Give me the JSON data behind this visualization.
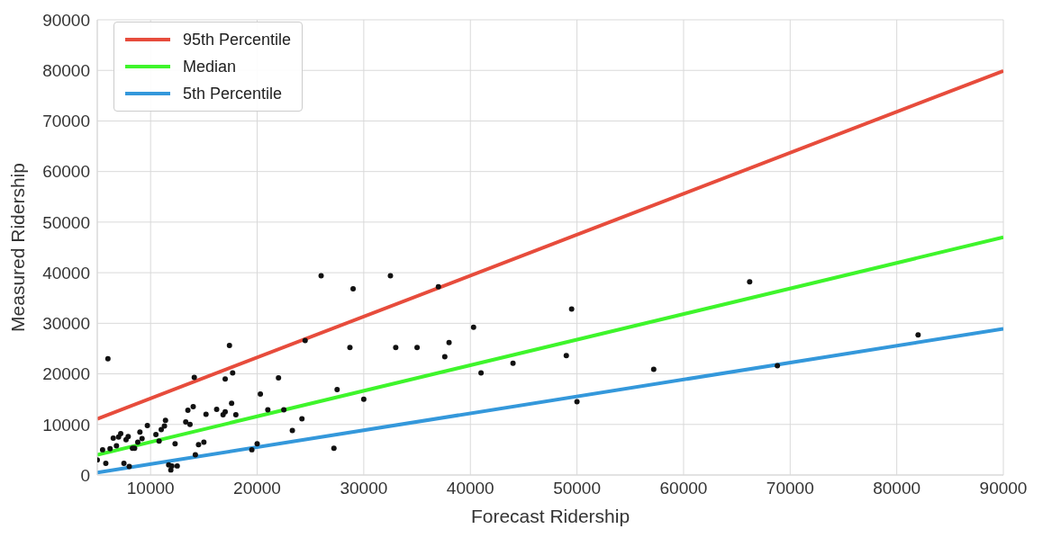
{
  "chart_data": {
    "type": "scatter",
    "xlabel": "Forecast Ridership",
    "ylabel": "Measured Ridership",
    "xlim": [
      5000,
      90000
    ],
    "ylim": [
      0,
      90000
    ],
    "xticks": [
      10000,
      20000,
      30000,
      40000,
      50000,
      60000,
      70000,
      80000,
      90000
    ],
    "yticks": [
      0,
      10000,
      20000,
      30000,
      40000,
      50000,
      60000,
      70000,
      80000,
      90000
    ],
    "grid": true,
    "legend": "top left",
    "series": [
      {
        "name": "95th Percentile",
        "type": "line",
        "color": "#e74c3c",
        "x": [
          5000,
          90000
        ],
        "values": [
          11100,
          79900
        ]
      },
      {
        "name": "Median",
        "type": "line",
        "color": "#3ef52b",
        "x": [
          5000,
          90000
        ],
        "values": [
          4000,
          47000
        ]
      },
      {
        "name": "5th Percentile",
        "type": "line",
        "color": "#3498db",
        "x": [
          5000,
          90000
        ],
        "values": [
          500,
          28900
        ]
      },
      {
        "color": "#111111",
        "marker": "circle",
        "x": [
          5000,
          5500,
          5800,
          6000,
          6200,
          6500,
          6800,
          7000,
          7200,
          7500,
          7700,
          7900,
          8000,
          8300,
          8500,
          8800,
          9000,
          9200,
          9700,
          10500,
          10800,
          11000,
          11300,
          11400,
          11700,
          11900,
          12000,
          12300,
          12500,
          13300,
          13500,
          13700,
          14000,
          14100,
          14200,
          14500,
          15000,
          15200,
          16200,
          16800,
          17000,
          17000,
          17400,
          17600,
          17700,
          18000,
          19500,
          20000,
          20300,
          21000,
          22000,
          22500,
          23300,
          24200,
          24500,
          26000,
          27200,
          27500,
          28700,
          29000,
          30000,
          32500,
          33000,
          35000,
          37000,
          37600,
          38000,
          40300,
          41000,
          44000,
          49000,
          49500,
          50000,
          57200,
          66200,
          68800,
          82000
        ],
        "values": [
          3000,
          5000,
          2300,
          23000,
          5200,
          7300,
          5800,
          7500,
          8200,
          2300,
          7000,
          7600,
          1700,
          5300,
          5300,
          6500,
          8500,
          7200,
          9800,
          8000,
          6700,
          9000,
          9700,
          10800,
          2000,
          1000,
          1800,
          6200,
          1800,
          10500,
          12800,
          10000,
          13500,
          19300,
          4000,
          6000,
          6500,
          12000,
          13000,
          11900,
          12500,
          19000,
          25600,
          14200,
          20200,
          11900,
          5000,
          6200,
          16000,
          12900,
          19200,
          12900,
          8800,
          11100,
          26600,
          39400,
          5300,
          16900,
          25200,
          36800,
          15000,
          39400,
          25200,
          25200,
          37200,
          23400,
          26200,
          29200,
          20200,
          22100,
          23600,
          32800,
          14500,
          20900,
          38200,
          21600,
          27700
        ]
      }
    ]
  }
}
